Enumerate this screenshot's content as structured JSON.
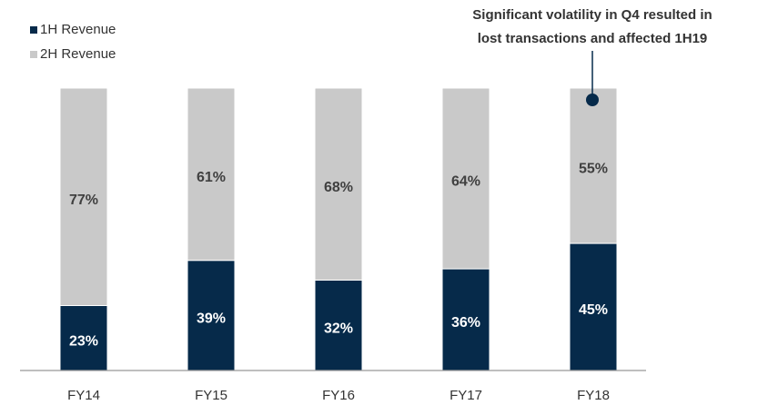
{
  "chart_data": {
    "type": "stacked_bar",
    "categories": [
      "FY14",
      "FY15",
      "FY16",
      "FY17",
      "FY18"
    ],
    "series": [
      {
        "name": "1H Revenue",
        "color": "#062a4a",
        "values": [
          23,
          39,
          32,
          36,
          45
        ],
        "value_labels": [
          "23%",
          "39%",
          "32%",
          "36%",
          "45%"
        ]
      },
      {
        "name": "2H Revenue",
        "color": "#c9c9c9",
        "values": [
          77,
          61,
          68,
          64,
          55
        ],
        "value_labels": [
          "77%",
          "61%",
          "68%",
          "64%",
          "55%"
        ]
      }
    ],
    "ylim": [
      0,
      100
    ],
    "legend": "top-left",
    "annotation": [
      "Significant volatility in Q4 resulted in",
      "lost transactions and affected 1H19"
    ]
  }
}
